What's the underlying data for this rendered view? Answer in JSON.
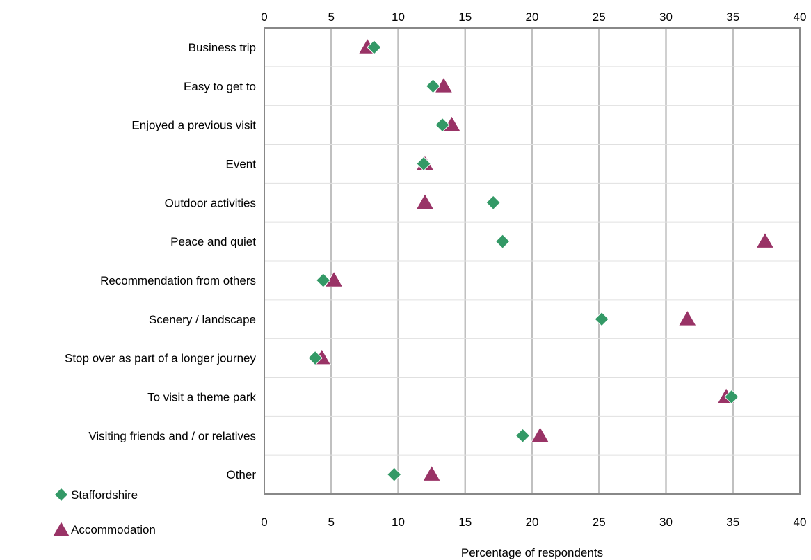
{
  "chart_data": {
    "type": "scatter",
    "orientation": "horizontal",
    "categories": [
      "Business trip",
      "Easy to get to",
      "Enjoyed a previous visit",
      "Event",
      "Outdoor activities",
      "Peace and quiet",
      "Recommendation from others",
      "Scenery / landscape",
      "Stop over as part of a longer journey",
      "To visit a theme park",
      "Visiting friends and / or relatives",
      "Other"
    ],
    "series": [
      {
        "name": "Staffordshire",
        "marker": "diamond",
        "color": "#339966",
        "values": [
          8.2,
          12.6,
          13.3,
          11.9,
          17.1,
          17.8,
          4.4,
          25.2,
          3.8,
          34.9,
          19.3,
          9.7
        ]
      },
      {
        "name": "Accommodation",
        "marker": "triangle",
        "color": "#993366",
        "values": [
          7.7,
          13.4,
          14.0,
          12.0,
          12.0,
          37.4,
          5.2,
          31.6,
          4.3,
          34.5,
          20.6,
          12.5
        ]
      }
    ],
    "xlabel": "Percentage of respondents",
    "xlim": [
      0,
      40
    ],
    "xticks": [
      "0",
      "5",
      "10",
      "15",
      "20",
      "25",
      "30",
      "35",
      "40"
    ],
    "grid": "vertical",
    "legend_position": "bottom-left"
  }
}
